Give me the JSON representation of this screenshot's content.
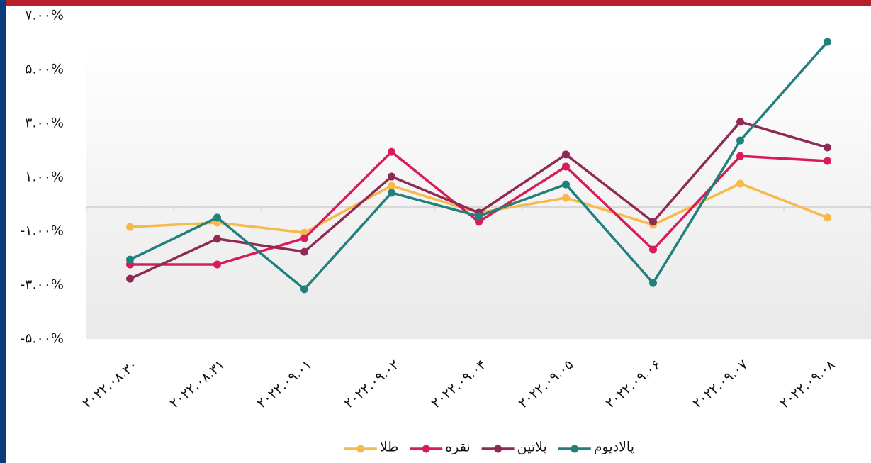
{
  "chart_data": {
    "type": "line",
    "categories": [
      "۲۰۲۲.۰۸.۳۰",
      "۲۰۲۲.۰۸.۳۱",
      "۲۰۲۲.۰۹.۰۱",
      "۲۰۲۲.۰۹.۰۲",
      "۲۰۲۲.۰۹.۰۴",
      "۲۰۲۲.۰۹.۰۵",
      "۲۰۲۲.۰۹.۰۶",
      "۲۰۲۲.۰۹.۰۷",
      "۲۰۲۲.۰۹.۰۸"
    ],
    "series": [
      {
        "name": "طلا",
        "color": "#f7b94a",
        "values": [
          -0.74,
          -0.58,
          -0.95,
          0.79,
          -0.21,
          0.34,
          -0.66,
          0.87,
          -0.39
        ]
      },
      {
        "name": "نقره",
        "color": "#d81b5b",
        "values": [
          -2.13,
          -2.13,
          -1.16,
          2.05,
          -0.55,
          1.5,
          -1.58,
          1.89,
          1.71
        ]
      },
      {
        "name": "پلاتین",
        "color": "#8e2a55",
        "values": [
          -2.66,
          -1.18,
          -1.66,
          1.13,
          -0.21,
          1.95,
          -0.55,
          3.16,
          2.21
        ]
      },
      {
        "name": "پالادیوم",
        "color": "#22807c",
        "values": [
          -1.95,
          -0.39,
          -3.05,
          0.53,
          -0.34,
          0.84,
          -2.82,
          2.47,
          6.13
        ]
      }
    ],
    "ylim": [
      -5,
      7
    ],
    "yticks": [
      {
        "value": 7,
        "label": "۷.۰۰%"
      },
      {
        "value": 5,
        "label": "۵.۰۰%"
      },
      {
        "value": 3,
        "label": "۳.۰۰%"
      },
      {
        "value": 1,
        "label": "۱.۰۰%"
      },
      {
        "value": -1,
        "label": "-۱.۰۰%"
      },
      {
        "value": -3,
        "label": "-۳.۰۰%"
      },
      {
        "value": -5,
        "label": "-۵.۰۰%"
      }
    ],
    "legend": "bottom"
  }
}
